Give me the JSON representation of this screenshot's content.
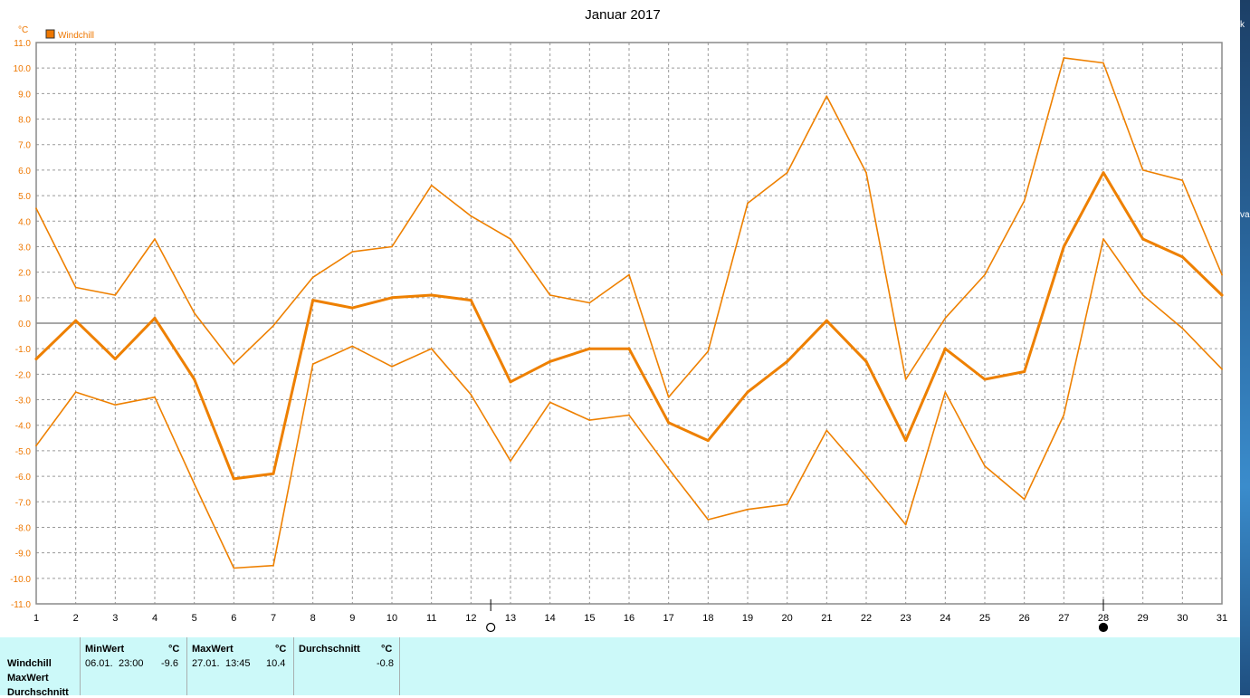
{
  "chart_data": {
    "type": "line",
    "title": "Januar 2017",
    "ylabel": "°C",
    "legend": {
      "label": "Windchill",
      "color": "#ee7700",
      "placement": "top-left"
    },
    "ylim": [
      -11,
      11
    ],
    "yticks": [
      "11.0",
      "10.0",
      "9.0",
      "8.0",
      "7.0",
      "6.0",
      "5.0",
      "4.0",
      "3.0",
      "2.0",
      "1.0",
      "0.0",
      "-1.0",
      "-2.0",
      "-3.0",
      "-4.0",
      "-5.0",
      "-6.0",
      "-7.0",
      "-8.0",
      "-9.0",
      "-10.0",
      "-11.0"
    ],
    "x": [
      1,
      2,
      3,
      4,
      5,
      6,
      7,
      8,
      9,
      10,
      11,
      12,
      13,
      14,
      15,
      16,
      17,
      18,
      19,
      20,
      21,
      22,
      23,
      24,
      25,
      26,
      27,
      28,
      29,
      30,
      31
    ],
    "xticks": [
      "1",
      "2",
      "3",
      "4",
      "5",
      "6",
      "7",
      "8",
      "9",
      "10",
      "11",
      "12",
      "13",
      "14",
      "15",
      "16",
      "17",
      "18",
      "19",
      "20",
      "21",
      "22",
      "23",
      "24",
      "25",
      "26",
      "27",
      "28",
      "29",
      "30",
      "31"
    ],
    "grid": true,
    "moon_markers": [
      {
        "name": "full-moon",
        "x": 12.5
      },
      {
        "name": "new-moon",
        "x": 28
      }
    ],
    "series": [
      {
        "values": [
          4.5,
          1.4,
          1.1,
          3.3,
          0.4,
          -1.6,
          -0.1,
          1.8,
          2.8,
          3.0,
          5.4,
          4.2,
          3.3,
          1.1,
          0.8,
          1.9,
          -2.9,
          -1.1,
          4.7,
          5.9,
          8.9,
          5.9,
          -2.2,
          0.2,
          1.9,
          4.8,
          10.4,
          10.2,
          6.0,
          5.6,
          1.9
        ],
        "color": "#ee8000",
        "width": 1.6
      },
      {
        "values": [
          -1.4,
          0.1,
          -1.4,
          0.2,
          -2.2,
          -6.1,
          -5.9,
          0.9,
          0.6,
          1.0,
          1.1,
          0.9,
          -2.3,
          -1.5,
          -1.0,
          -1.0,
          -3.9,
          -4.6,
          -2.7,
          -1.5,
          0.1,
          -1.5,
          -4.6,
          -1.0,
          -2.2,
          -1.9,
          3.0,
          5.9,
          3.3,
          2.6,
          1.1
        ],
        "color": "#ee8000",
        "width": 3
      },
      {
        "values": [
          -4.8,
          -2.7,
          -3.2,
          -2.9,
          -6.3,
          -9.6,
          -9.5,
          -1.6,
          -0.9,
          -1.7,
          -1.0,
          -2.8,
          -5.4,
          -3.1,
          -3.8,
          -3.6,
          -5.7,
          -7.7,
          -7.3,
          -7.1,
          -4.2,
          -6.0,
          -7.9,
          -2.7,
          -5.6,
          -6.9,
          -3.6,
          3.3,
          1.1,
          -0.2,
          -1.8
        ],
        "color": "#ee8000",
        "width": 1.6
      }
    ]
  },
  "stats": {
    "row_labels": [
      "Windchill",
      "MaxWert",
      "Durchschnitt"
    ],
    "min": {
      "header": "MinWert",
      "unit": "°C",
      "date": "06.01.",
      "time": "23:00",
      "value": "-9.6"
    },
    "max": {
      "header": "MaxWert",
      "unit": "°C",
      "date": "27.01.",
      "time": "13:45",
      "value": "10.4"
    },
    "avg": {
      "header": "Durchschnitt",
      "unit": "°C",
      "value": "-0.8"
    }
  },
  "right_edge": {
    "top_glyph": "k",
    "mid_glyph": "va"
  }
}
